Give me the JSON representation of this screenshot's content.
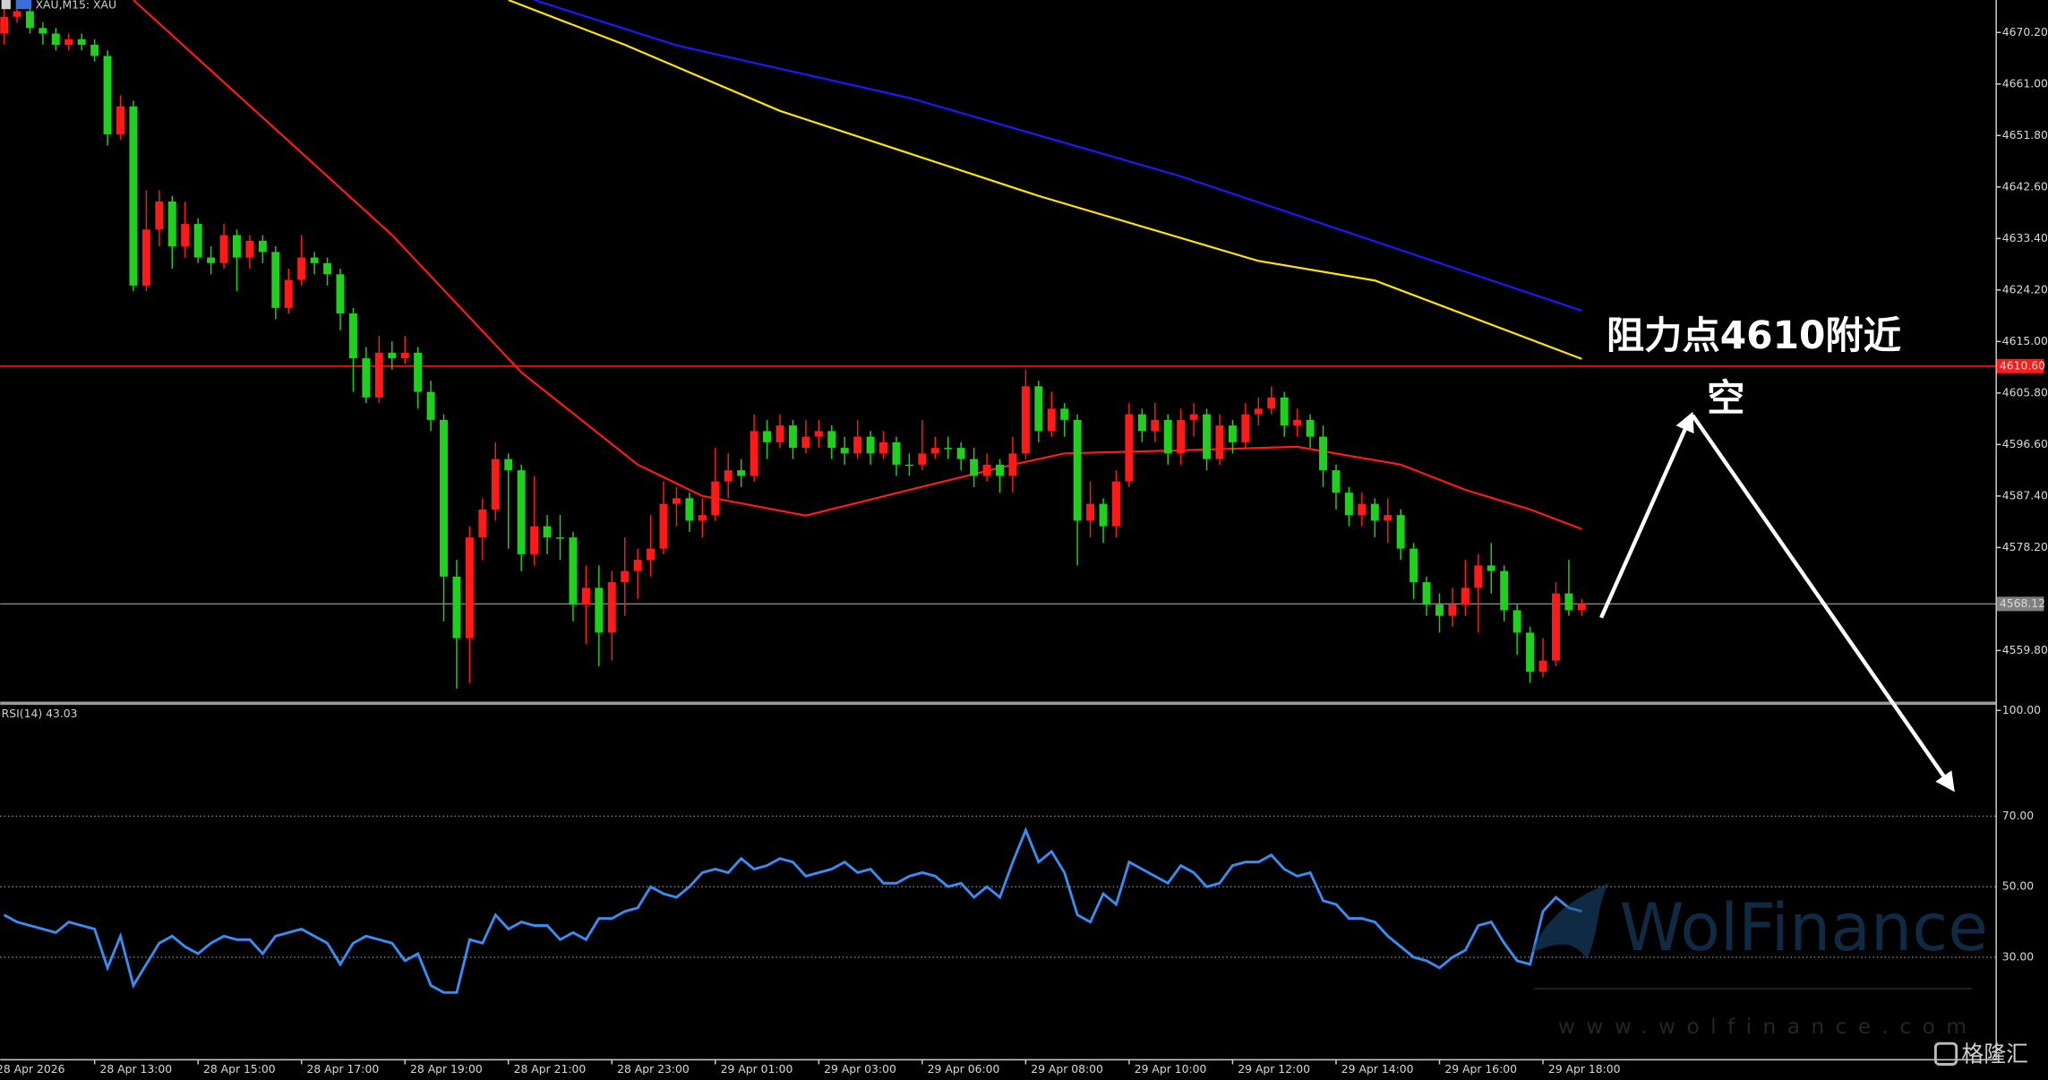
{
  "chart_data": {
    "type": "candlestick",
    "title": "XAU,M15: XAU",
    "up_color": "#ff1a1a",
    "down_color": "#1fd01f",
    "open": [
      4670,
      4673,
      4674,
      4671,
      4670,
      4668,
      4669,
      4668,
      4666,
      4652,
      4657,
      4625,
      4635,
      4640,
      4632,
      4636,
      4630,
      4629,
      4634,
      4630,
      4633,
      4631,
      4621,
      4626,
      4630,
      4629,
      4627,
      4620,
      4612,
      4605,
      4613,
      4612,
      4613,
      4606,
      4601,
      4573,
      4562,
      4580,
      4585,
      4594,
      4592,
      4577,
      4582,
      4580,
      4580,
      4568,
      4571,
      4563,
      4572,
      4574,
      4576,
      4578,
      4586,
      4587,
      4583,
      4584,
      4590,
      4592,
      4591,
      4599,
      4597,
      4600,
      4596,
      4598,
      4599,
      4596,
      4595,
      4598,
      4595,
      4597,
      4593,
      4593,
      4595,
      4596,
      4596,
      4594,
      4591,
      4593,
      4591,
      4595,
      4607,
      4599,
      4603,
      4601,
      4583,
      4586,
      4582,
      4590,
      4602,
      4599,
      4601,
      4595,
      4601,
      4602,
      4594,
      4600,
      4597,
      4602,
      4603,
      4605,
      4600,
      4601,
      4598,
      4592,
      4588,
      4584,
      4586,
      4583,
      4584,
      4578,
      4572,
      4568,
      4566,
      4568,
      4571,
      4575,
      4574,
      4567,
      4563,
      4556,
      4558,
      4570,
      4567
    ],
    "high": [
      4675,
      4676,
      4675,
      4672,
      4671,
      4670,
      4670,
      4669,
      4667,
      4659,
      4658,
      4642,
      4642,
      4641,
      4640,
      4637,
      4632,
      4636,
      4635,
      4634,
      4634,
      4632,
      4628,
      4634,
      4631,
      4630,
      4628,
      4621,
      4614,
      4616,
      4615,
      4616,
      4614,
      4608,
      4602,
      4576,
      4582,
      4587,
      4597,
      4595,
      4593,
      4591,
      4584,
      4584,
      4581,
      4575,
      4575,
      4574,
      4580,
      4578,
      4584,
      4590,
      4589,
      4588,
      4587,
      4596,
      4595,
      4594,
      4602,
      4601,
      4602,
      4601,
      4601,
      4601,
      4600,
      4598,
      4601,
      4599,
      4599,
      4598,
      4595,
      4601,
      4598,
      4598,
      4597,
      4596,
      4595,
      4594,
      4598,
      4610,
      4608,
      4606,
      4604,
      4602,
      4590,
      4587,
      4592,
      4604,
      4603,
      4604,
      4602,
      4603,
      4604,
      4603,
      4602,
      4601,
      4604,
      4605,
      4607,
      4606,
      4603,
      4602,
      4600,
      4593,
      4589,
      4588,
      4587,
      4587,
      4585,
      4579,
      4573,
      4570,
      4571,
      4576,
      4577,
      4579,
      4575,
      4568,
      4564,
      4562,
      4572,
      4576,
      4569
    ],
    "low": [
      4668,
      4672,
      4670,
      4668,
      4667,
      4667,
      4667,
      4665,
      4650,
      4651,
      4624,
      4624,
      4632,
      4628,
      4630,
      4629,
      4627,
      4628,
      4624,
      4628,
      4629,
      4619,
      4620,
      4625,
      4627,
      4625,
      4617,
      4606,
      4604,
      4604,
      4610,
      4611,
      4603,
      4599,
      4565,
      4553,
      4554,
      4576,
      4583,
      4578,
      4574,
      4575,
      4577,
      4576,
      4565,
      4561,
      4557,
      4558,
      4566,
      4569,
      4573,
      4577,
      4582,
      4581,
      4580,
      4583,
      4587,
      4589,
      4590,
      4594,
      4596,
      4594,
      4595,
      4596,
      4594,
      4593,
      4594,
      4593,
      4594,
      4591,
      4591,
      4592,
      4594,
      4594,
      4592,
      4589,
      4590,
      4588,
      4588,
      4594,
      4597,
      4598,
      4598,
      4575,
      4580,
      4579,
      4580,
      4589,
      4597,
      4597,
      4593,
      4593,
      4598,
      4592,
      4593,
      4595,
      4596,
      4600,
      4602,
      4598,
      4598,
      4596,
      4589,
      4585,
      4582,
      4582,
      4580,
      4579,
      4576,
      4569,
      4566,
      4563,
      4564,
      4566,
      4563,
      4570,
      4565,
      4559,
      4554,
      4555,
      4557,
      4566,
      4566
    ],
    "close": [
      4673,
      4674,
      4671,
      4670,
      4668,
      4669,
      4668,
      4666,
      4652,
      4657,
      4625,
      4635,
      4640,
      4632,
      4636,
      4630,
      4629,
      4634,
      4630,
      4633,
      4631,
      4621,
      4626,
      4630,
      4629,
      4627,
      4620,
      4612,
      4605,
      4613,
      4612,
      4613,
      4606,
      4601,
      4573,
      4562,
      4580,
      4585,
      4594,
      4592,
      4577,
      4582,
      4580,
      4580,
      4568,
      4571,
      4563,
      4572,
      4574,
      4576,
      4578,
      4586,
      4587,
      4583,
      4584,
      4590,
      4592,
      4591,
      4599,
      4597,
      4600,
      4596,
      4598,
      4599,
      4596,
      4595,
      4598,
      4595,
      4597,
      4593,
      4593,
      4595,
      4596,
      4596,
      4594,
      4591,
      4593,
      4591,
      4595,
      4607,
      4599,
      4603,
      4601,
      4583,
      4586,
      4582,
      4590,
      4602,
      4599,
      4601,
      4595,
      4601,
      4602,
      4594,
      4600,
      4597,
      4602,
      4603,
      4605,
      4600,
      4601,
      4598,
      4592,
      4588,
      4584,
      4586,
      4583,
      4584,
      4578,
      4572,
      4568,
      4566,
      4568,
      4571,
      4575,
      4574,
      4567,
      4563,
      4556,
      4558,
      4570,
      4567,
      4568.12
    ],
    "ma_lines": [
      {
        "color": "#ff1a1a",
        "x": [
          10,
          20,
          30,
          40,
          49,
          54,
          62,
          70,
          78,
          82,
          90,
          100,
          108,
          113,
          118,
          122
        ],
        "values": [
          4676,
          4655,
          4634,
          4609.5,
          4593,
          4587.4,
          4583.9,
          4588.5,
          4593,
          4595,
          4595.5,
          4596.2,
          4593,
          4588.5,
          4585,
          4581.5
        ]
      },
      {
        "color": "#1a1aff",
        "x": [
          41,
          52,
          70,
          91,
          106,
          122
        ],
        "values": [
          4676,
          4667.9,
          4658.5,
          4644.5,
          4632.9,
          4620.5
        ]
      },
      {
        "color": "#ffe600",
        "x": [
          39,
          48,
          60,
          80,
          97,
          106,
          122
        ],
        "values": [
          4676,
          4668,
          4656.2,
          4641,
          4629.4,
          4625.9,
          4611.9
        ]
      }
    ],
    "xlim": [
      -0.3,
      154
    ],
    "xticks": [
      {
        "value": -1,
        "label": "28 Apr 2026"
      },
      {
        "value": 7,
        "label": "28 Apr 13:00"
      },
      {
        "value": 15,
        "label": "28 Apr 15:00"
      },
      {
        "value": 23,
        "label": "28 Apr 17:00"
      },
      {
        "value": 31,
        "label": "28 Apr 19:00"
      },
      {
        "value": 39,
        "label": "28 Apr 21:00"
      },
      {
        "value": 47,
        "label": "28 Apr 23:00"
      },
      {
        "value": 55,
        "label": "29 Apr 01:00"
      },
      {
        "value": 63,
        "label": "29 Apr 03:00"
      },
      {
        "value": 71,
        "label": "29 Apr 06:00"
      },
      {
        "value": 79,
        "label": "29 Apr 08:00"
      },
      {
        "value": 87,
        "label": "29 Apr 10:00"
      },
      {
        "value": 95,
        "label": "29 Apr 12:00"
      },
      {
        "value": 103,
        "label": "29 Apr 14:00"
      },
      {
        "value": 111,
        "label": "29 Apr 16:00"
      },
      {
        "value": 119,
        "label": "29 Apr 18:00"
      }
    ],
    "ylim": [
      4550.5,
      4676.0
    ],
    "yticks": [
      {
        "value": 4670.2,
        "label": "4670.20"
      },
      {
        "value": 4661.0,
        "label": "4661.00"
      },
      {
        "value": 4651.8,
        "label": "4651.80"
      },
      {
        "value": 4642.6,
        "label": "4642.60"
      },
      {
        "value": 4633.4,
        "label": "4633.40"
      },
      {
        "value": 4624.2,
        "label": "4624.20"
      },
      {
        "value": 4615.0,
        "label": "4615.00"
      },
      {
        "value": 4605.8,
        "label": "4605.80"
      },
      {
        "value": 4596.6,
        "label": "4596.60"
      },
      {
        "value": 4587.4,
        "label": "4587.40"
      },
      {
        "value": 4578.2,
        "label": "4578.20"
      },
      {
        "value": 4559.8,
        "label": "4559.80"
      }
    ],
    "hlines": [
      {
        "value": 4610.6,
        "label": "4610.60",
        "color": "#ff1a1a"
      },
      {
        "value": 4568.12,
        "label": "4568.12",
        "color": "#808080"
      }
    ],
    "annotations": [
      "阻力点4610附近",
      "空"
    ],
    "indicator": {
      "type": "line",
      "label": "RSI(14) 43.03",
      "color": "#3a8cf0",
      "ylim": [
        0,
        100
      ],
      "yticks": [
        {
          "value": 100,
          "label": "100.00"
        },
        {
          "value": 70,
          "label": "70.00"
        },
        {
          "value": 50,
          "label": "50.00"
        },
        {
          "value": 30,
          "label": "30.00"
        }
      ],
      "values": [
        42,
        40,
        39,
        38,
        37,
        40,
        39,
        38,
        27,
        36,
        22,
        28,
        34,
        36,
        33,
        31,
        34,
        36,
        35,
        35,
        31,
        36,
        37,
        38,
        36,
        34,
        28,
        34,
        36,
        35,
        34,
        29,
        31,
        22,
        20,
        20,
        35,
        34,
        42,
        38,
        40,
        39,
        39,
        35,
        37,
        35,
        41,
        41,
        43,
        44,
        50,
        48,
        47,
        50,
        54,
        55,
        54,
        58,
        55,
        56,
        58,
        57,
        53,
        54,
        55,
        57,
        54,
        55,
        51,
        51,
        53,
        54,
        53,
        50,
        51,
        47,
        50,
        47,
        57,
        66,
        57,
        60,
        54,
        42,
        40,
        48,
        45,
        57,
        55,
        53,
        51,
        56,
        54,
        50,
        51,
        56,
        57,
        57,
        59,
        55,
        53,
        54,
        46,
        45,
        41,
        41,
        40,
        36,
        33,
        30,
        29,
        27,
        30,
        32,
        39,
        40,
        34,
        29,
        28,
        43,
        47,
        44,
        43.03
      ]
    }
  },
  "watermark": {
    "brand": "WolFinance",
    "url": "www.wolfinance.com",
    "logo": "格隆汇"
  }
}
